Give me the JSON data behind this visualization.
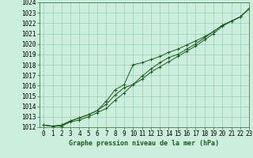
{
  "title": "Graphe pression niveau de la mer (hPa)",
  "background_color": "#cceedd",
  "grid_color": "#99ccbb",
  "line_color": "#1a5c1a",
  "spine_color": "#336633",
  "xlim": [
    -0.5,
    23
  ],
  "ylim": [
    1012,
    1024
  ],
  "yticks": [
    1012,
    1013,
    1014,
    1015,
    1016,
    1017,
    1018,
    1019,
    1020,
    1021,
    1022,
    1023,
    1024
  ],
  "xticks": [
    0,
    1,
    2,
    3,
    4,
    5,
    6,
    7,
    8,
    9,
    10,
    11,
    12,
    13,
    14,
    15,
    16,
    17,
    18,
    19,
    20,
    21,
    22,
    23
  ],
  "series1": [
    1012.2,
    1012.1,
    1012.1,
    1012.5,
    1012.7,
    1013.0,
    1013.4,
    1013.8,
    1014.6,
    1015.3,
    1016.1,
    1016.9,
    1017.6,
    1018.2,
    1018.7,
    1019.0,
    1019.5,
    1020.0,
    1020.6,
    1021.2,
    1021.8,
    1022.2,
    1022.6,
    1023.4
  ],
  "series2": [
    1012.2,
    1012.1,
    1012.2,
    1012.6,
    1012.9,
    1013.2,
    1013.6,
    1014.5,
    1015.6,
    1016.1,
    1018.0,
    1018.2,
    1018.5,
    1018.8,
    1019.2,
    1019.5,
    1019.9,
    1020.3,
    1020.7,
    1021.2,
    1021.8,
    1022.2,
    1022.6,
    1023.4
  ],
  "series3": [
    1012.2,
    1012.1,
    1012.2,
    1012.6,
    1012.9,
    1013.2,
    1013.6,
    1014.2,
    1015.1,
    1015.8,
    1016.1,
    1016.6,
    1017.3,
    1017.8,
    1018.3,
    1018.8,
    1019.3,
    1019.8,
    1020.4,
    1021.0,
    1021.7,
    1022.2,
    1022.6,
    1023.4
  ],
  "tick_fontsize": 5.5,
  "title_fontsize": 6.0,
  "linewidth": 0.7,
  "markersize": 2.5
}
